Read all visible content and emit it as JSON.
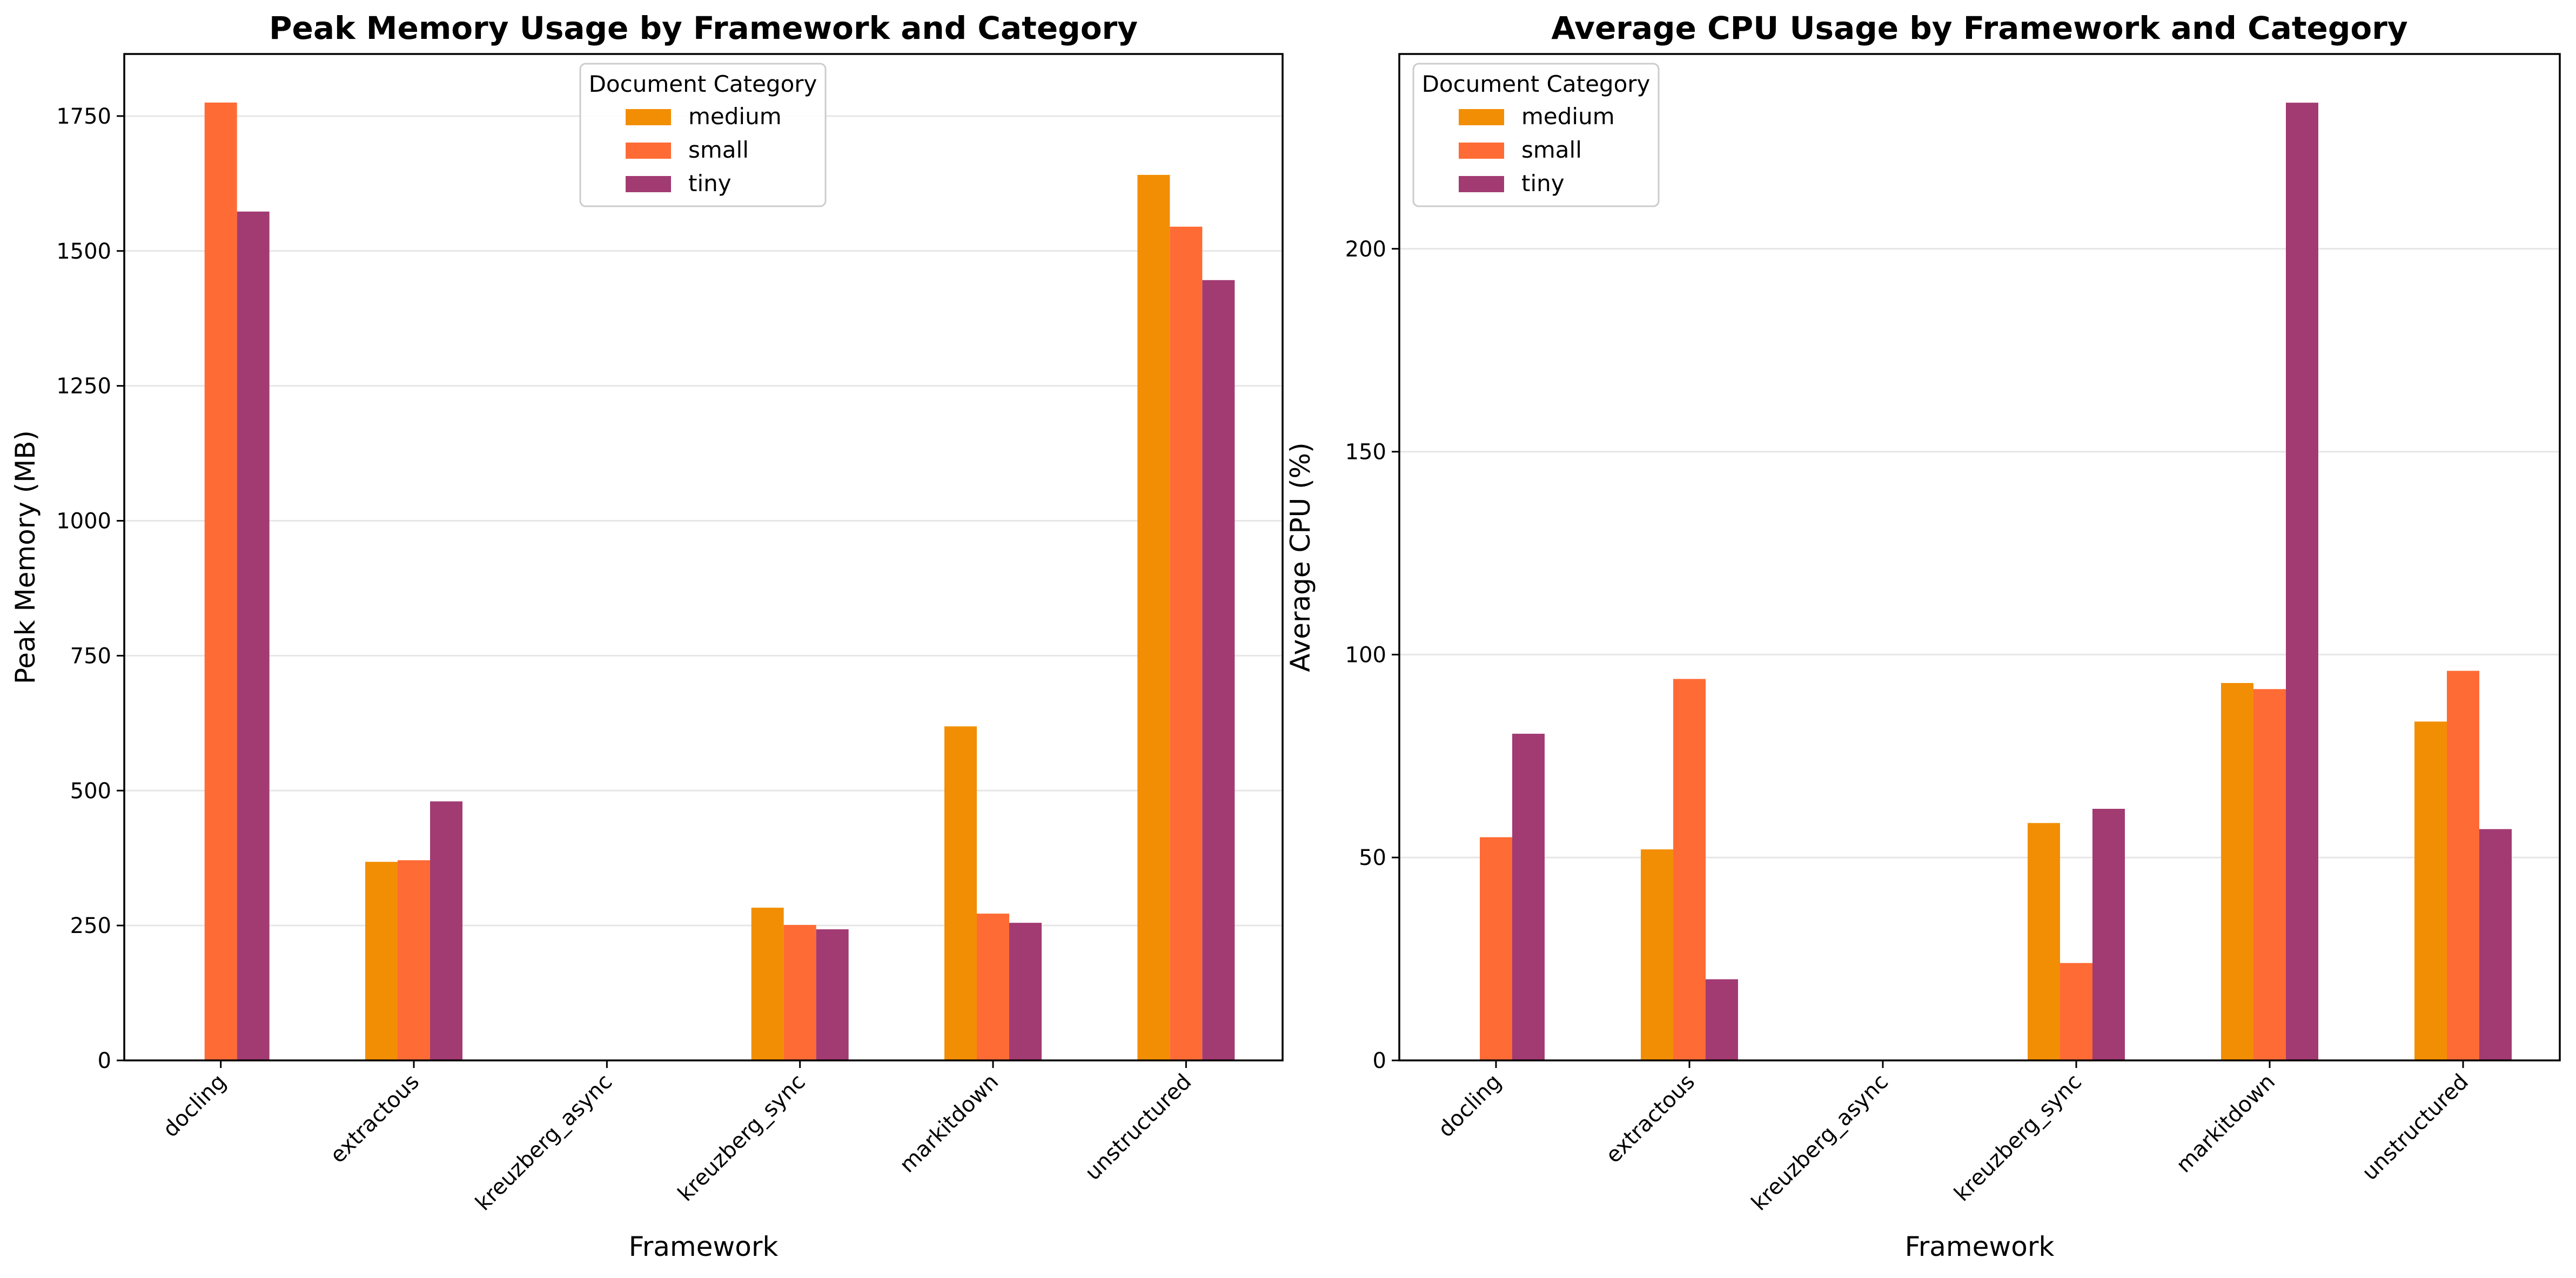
{
  "chart_data": [
    {
      "type": "bar",
      "title": "Peak Memory Usage by Framework and Category",
      "xlabel": "Framework",
      "ylabel": "Peak Memory (MB)",
      "categories": [
        "docling",
        "extractous",
        "kreuzberg_async",
        "kreuzberg_sync",
        "markitdown",
        "unstructured"
      ],
      "series": [
        {
          "name": "medium",
          "color": "#f28e04",
          "values": [
            0,
            368,
            0,
            283,
            619,
            1641
          ]
        },
        {
          "name": "small",
          "color": "#ff6b35",
          "values": [
            1775,
            371,
            0,
            251,
            272,
            1545
          ]
        },
        {
          "name": "tiny",
          "color": "#a23b72",
          "values": [
            1573,
            480,
            0,
            243,
            255,
            1446
          ]
        }
      ],
      "ylim": [
        0,
        1865
      ],
      "yticks": [
        "0",
        "250",
        "500",
        "750",
        "1000",
        "1250",
        "1500",
        "1750"
      ],
      "legend": {
        "title": "Document Category",
        "position": "top-center"
      },
      "grid": "horizontal"
    },
    {
      "type": "bar",
      "title": "Average CPU Usage by Framework and Category",
      "xlabel": "Framework",
      "ylabel": "Average CPU (%)",
      "categories": [
        "docling",
        "extractous",
        "kreuzberg_async",
        "kreuzberg_sync",
        "markitdown",
        "unstructured"
      ],
      "series": [
        {
          "name": "medium",
          "color": "#f28e04",
          "values": [
            0,
            52,
            0,
            58.5,
            93,
            83.5
          ]
        },
        {
          "name": "small",
          "color": "#ff6b35",
          "values": [
            55,
            94,
            0,
            24,
            91.5,
            96
          ]
        },
        {
          "name": "tiny",
          "color": "#a23b72",
          "values": [
            80.5,
            20,
            0,
            62,
            236,
            57
          ]
        }
      ],
      "ylim": [
        0,
        248
      ],
      "yticks": [
        "0",
        "50",
        "100",
        "150",
        "200"
      ],
      "legend": {
        "title": "Document Category",
        "position": "top-left"
      },
      "grid": "horizontal"
    }
  ]
}
